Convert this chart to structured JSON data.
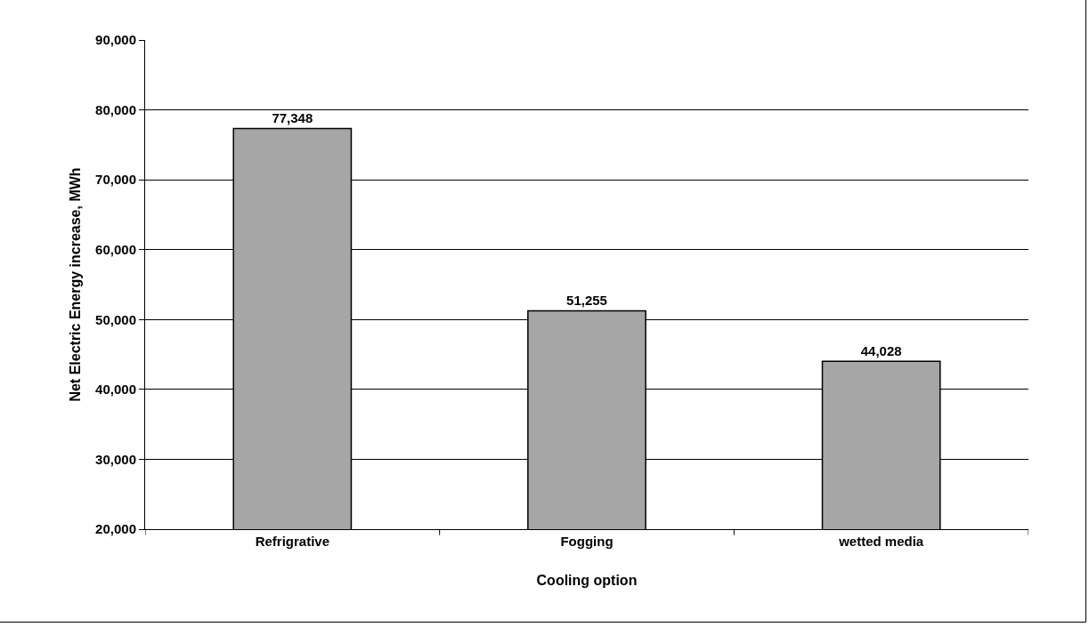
{
  "chart_data": {
    "type": "bar",
    "categories": [
      "Refrigrative",
      "Fogging",
      "wetted media"
    ],
    "values": [
      77348,
      51255,
      44028
    ],
    "color": "#a6a6a6",
    "xlabel": "Cooling option",
    "ylabel": "Net Electric Energy increase, MWh",
    "ylim": [
      20000,
      90000
    ],
    "yticks": [
      {
        "value": 20000,
        "label": "20,000"
      },
      {
        "value": 30000,
        "label": "30,000"
      },
      {
        "value": 40000,
        "label": "40,000"
      },
      {
        "value": 50000,
        "label": "50,000"
      },
      {
        "value": 60000,
        "label": "60,000"
      },
      {
        "value": 70000,
        "label": "70,000"
      },
      {
        "value": 80000,
        "label": "80,000"
      },
      {
        "value": 90000,
        "label": "90,000"
      }
    ],
    "grid": "y",
    "value_labels": [
      "77,348",
      "51,255",
      "44,028"
    ]
  }
}
